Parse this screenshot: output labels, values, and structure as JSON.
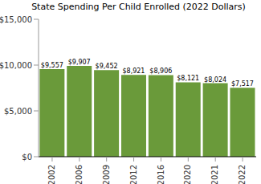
{
  "chart_data": {
    "type": "bar",
    "title": "State Spending Per Child Enrolled (2022 Dollars)",
    "categories": [
      "2002",
      "2006",
      "2009",
      "2012",
      "2016",
      "2020",
      "2021",
      "2022"
    ],
    "values": [
      9557,
      9907,
      9452,
      8921,
      8906,
      8121,
      8024,
      7517
    ],
    "value_labels": [
      "$9,557",
      "$9,907",
      "$9,452",
      "$8,921",
      "$8,906",
      "$8,121",
      "$8,024",
      "$7,517"
    ],
    "data_labels": true,
    "color": "#6a9a3a",
    "ylim": [
      0,
      15000
    ],
    "yticks": [
      {
        "value": 0,
        "label": "$0"
      },
      {
        "value": 5000,
        "label": "$5,000"
      },
      {
        "value": 10000,
        "label": "$10,000"
      },
      {
        "value": 15000,
        "label": "$15,000"
      }
    ],
    "grid": false
  }
}
